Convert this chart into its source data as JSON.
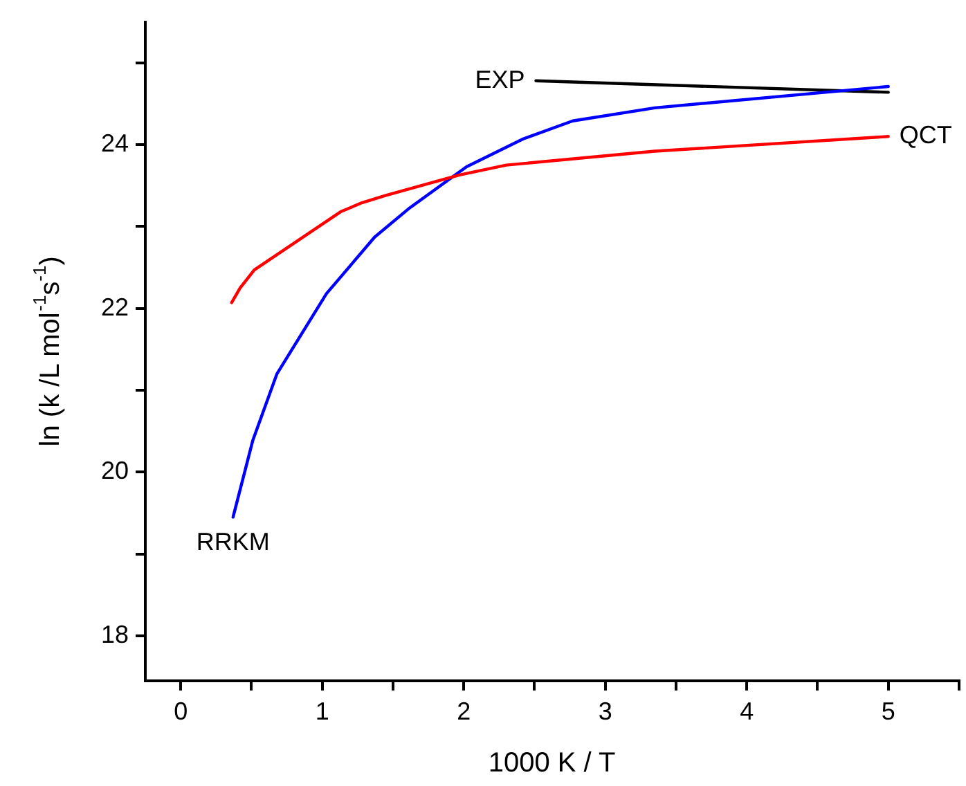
{
  "chart_data": {
    "type": "line",
    "xlabel": "1000 K / T",
    "ylabel": "ln (k /L mol$^{-1}$s$^{-1}$)",
    "xlim": [
      -0.25,
      5.5
    ],
    "xticks": [
      0,
      {
        "value": 0.5,
        "label": null
      },
      1,
      {
        "value": 1.5,
        "label": null
      },
      2,
      {
        "value": 2.5,
        "label": null
      },
      3,
      {
        "value": 3.5,
        "label": null
      },
      4,
      {
        "value": 4.5,
        "label": null
      },
      5,
      {
        "value": 5.5,
        "label": null
      }
    ],
    "ylim": [
      17.45,
      25.5
    ],
    "yticks": [
      18,
      {
        "value": 19,
        "label": null
      },
      20,
      {
        "value": 21,
        "label": null
      },
      22,
      {
        "value": 23,
        "label": null
      },
      24,
      {
        "value": 25,
        "label": null
      }
    ],
    "grid": false,
    "legend": false,
    "marker": "none",
    "line_style": "solid",
    "series": [
      {
        "name": "QCT",
        "color": "#ff0000",
        "x": [
          0.36,
          0.42,
          0.52,
          1.13,
          1.28,
          1.45,
          1.97,
          2.3,
          3.35,
          5.0
        ],
        "values": [
          22.07,
          22.25,
          22.47,
          23.18,
          23.29,
          23.38,
          23.63,
          23.75,
          23.92,
          24.1
        ]
      },
      {
        "name": "RRKM",
        "color": "#0000ff",
        "x": [
          0.37,
          0.51,
          0.68,
          1.03,
          1.37,
          1.62,
          2.02,
          2.42,
          2.77,
          3.35,
          5.0
        ],
        "values": [
          19.45,
          20.39,
          21.2,
          22.18,
          22.87,
          23.23,
          23.73,
          24.07,
          24.29,
          24.45,
          24.71
        ]
      },
      {
        "name": "EXP",
        "color": "#000000",
        "x": [
          2.51,
          5.0
        ],
        "values": [
          24.78,
          24.64
        ]
      }
    ]
  }
}
